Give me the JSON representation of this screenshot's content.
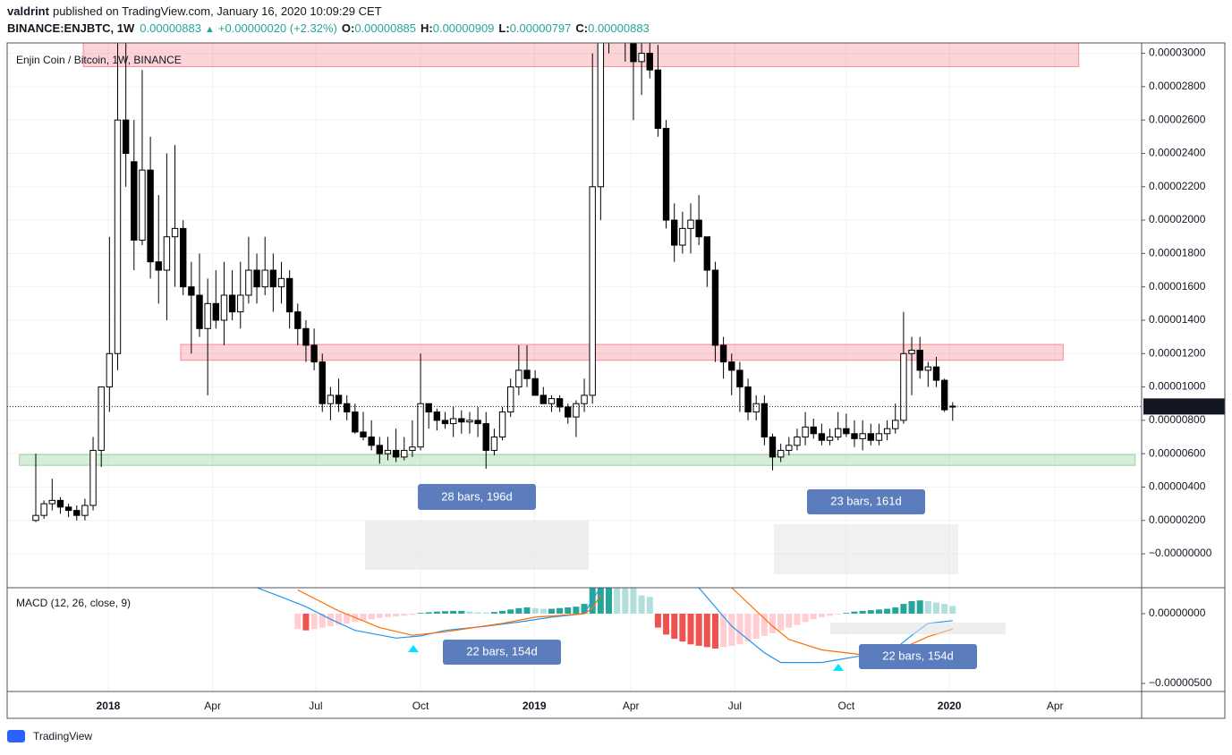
{
  "header": {
    "author": "valdrint",
    "published": "published on TradingView.com, January 16, 2020 10:09:29 CET",
    "symbol": "BINANCE:ENJBTC, 1W",
    "price": "0.00000883",
    "arrow": "▲",
    "change": "+0.00000020 (+2.32%)",
    "ohlc": [
      {
        "label": "O:",
        "value": "0.00000885"
      },
      {
        "label": "H:",
        "value": "0.00000909"
      },
      {
        "label": "L:",
        "value": "0.00000797"
      },
      {
        "label": "C:",
        "value": "0.00000883"
      }
    ]
  },
  "footer": {
    "logo": "TradingView"
  },
  "annotations": [
    "28 bars, 196d",
    "23 bars, 161d",
    "22 bars, 154d",
    "22 bars, 154d"
  ],
  "chart_data": {
    "type": "candlestick",
    "title": "Enjin Coin / Bitcoin, 1W, BINANCE",
    "up_color": "#ffffff",
    "down_color": "#000000",
    "wick_color": "#000000",
    "open": [
      2e-06,
      2.3e-06,
      3e-06,
      3.2e-06,
      2.8e-06,
      2.6e-06,
      2.3e-06,
      2.9e-06,
      6.2e-06,
      1e-05,
      1.2e-05,
      2.6e-05,
      2.35e-05,
      1.88e-05,
      2.3e-05,
      1.75e-05,
      1.7e-05,
      1.9e-05,
      1.95e-05,
      1.6e-05,
      1.55e-05,
      1.35e-05,
      1.5e-05,
      1.4e-05,
      1.55e-05,
      1.45e-05,
      1.55e-05,
      1.7e-05,
      1.6e-05,
      1.7e-05,
      1.6e-05,
      1.65e-05,
      1.45e-05,
      1.35e-05,
      1.25e-05,
      1.15e-05,
      9e-06,
      9.5e-06,
      9e-06,
      8.5e-06,
      7.3e-06,
      7e-06,
      6.5e-06,
      6e-06,
      6.2e-06,
      5.8e-06,
      6.2e-06,
      6.4e-06,
      9e-06,
      8.5e-06,
      8e-06,
      7.8e-06,
      8.1e-06,
      7.9e-06,
      8e-06,
      7.8e-06,
      6.2e-06,
      7e-06,
      8.5e-06,
      1e-05,
      1.1e-05,
      1.05e-05,
      9.5e-06,
      9e-06,
      9.3e-06,
      8.8e-06,
      8.2e-06,
      9e-06,
      9.5e-06,
      2.2e-05,
      3.2e-05,
      3.4e-05,
      3.2e-05,
      3.1e-05,
      2.95e-05,
      3e-05,
      2.9e-05,
      2.55e-05,
      2e-05,
      1.85e-05,
      1.95e-05,
      2e-05,
      1.9e-05,
      1.7e-05,
      1.25e-05,
      1.15e-05,
      1.1e-05,
      1e-05,
      8.5e-06,
      9e-06,
      7e-06,
      5.8e-06,
      6.2e-06,
      6.5e-06,
      7e-06,
      7.6e-06,
      7.2e-06,
      6.8e-06,
      7e-06,
      7.5e-06,
      7.2e-06,
      6.9e-06,
      7.2e-06,
      6.8e-06,
      7.2e-06,
      7.5e-06,
      8e-06,
      1.2e-05,
      1.22e-05,
      1.1e-05,
      1.12e-05,
      1.04e-05,
      8.85e-06
    ],
    "high": [
      6e-06,
      3.2e-06,
      4.5e-06,
      3.4e-06,
      3e-06,
      2.9e-06,
      3.3e-06,
      7e-06,
      1e-05,
      1.9e-05,
      3.2e-05,
      3.2e-05,
      2.6e-05,
      2.9e-05,
      2.5e-05,
      2.15e-05,
      2.4e-05,
      2.45e-05,
      2e-05,
      1.75e-05,
      1.8e-05,
      1.65e-05,
      1.7e-05,
      1.75e-05,
      1.7e-05,
      1.75e-05,
      1.9e-05,
      1.8e-05,
      1.9e-05,
      1.8e-05,
      1.75e-05,
      1.7e-05,
      1.5e-05,
      1.4e-05,
      1.35e-05,
      1.2e-05,
      1e-05,
      1.05e-05,
      9.5e-06,
      9e-06,
      8.5e-06,
      8e-06,
      7e-06,
      7e-06,
      7.5e-06,
      7e-06,
      8e-06,
      1.2e-05,
      9e-06,
      8.7e-06,
      8.5e-06,
      8.8e-06,
      8.6e-06,
      8.5e-06,
      8.8e-06,
      8.5e-06,
      7.5e-06,
      8.8e-06,
      1.05e-05,
      1.25e-05,
      1.25e-05,
      1.1e-05,
      1e-05,
      9.5e-06,
      9.5e-06,
      9e-06,
      9.2e-06,
      1.05e-05,
      3e-05,
      3.3e-05,
      3.6e-05,
      3.5e-05,
      3.3e-05,
      3.2e-05,
      3.1e-05,
      3.2e-05,
      3.05e-05,
      2.6e-05,
      2.1e-05,
      2.05e-05,
      2.1e-05,
      2.15e-05,
      1.9e-05,
      1.75e-05,
      1.3e-05,
      1.2e-05,
      1.15e-05,
      1.05e-05,
      9.5e-06,
      9.5e-06,
      7.2e-06,
      6.6e-06,
      7e-06,
      7.5e-06,
      8.5e-06,
      8.1e-06,
      7.8e-06,
      7.5e-06,
      8.5e-06,
      8.4e-06,
      8e-06,
      8e-06,
      7.8e-06,
      7.8e-06,
      8e-06,
      9e-06,
      1.45e-05,
      1.3e-05,
      1.3e-05,
      1.15e-05,
      1.18e-05,
      1.05e-05,
      9.09e-06
    ],
    "low": [
      1.9e-06,
      2.1e-06,
      2.6e-06,
      2.4e-06,
      2.2e-06,
      2e-06,
      2e-06,
      2.6e-06,
      5.2e-06,
      8.5e-06,
      1.1e-05,
      2.2e-05,
      1.7e-05,
      1.85e-05,
      1.65e-05,
      1.5e-05,
      1.4e-05,
      1.6e-05,
      1.55e-05,
      1.2e-05,
      1.3e-05,
      9.5e-06,
      1.35e-05,
      1.25e-05,
      1.4e-05,
      1.35e-05,
      1.5e-05,
      1.5e-05,
      1.55e-05,
      1.45e-05,
      1.5e-05,
      1.35e-05,
      1.25e-05,
      1.15e-05,
      1.1e-05,
      8.5e-06,
      8e-06,
      8.5e-06,
      8e-06,
      7.2e-06,
      6.8e-06,
      6.2e-06,
      5.4e-06,
      5.6e-06,
      5.5e-06,
      5.6e-06,
      5.8e-06,
      6.2e-06,
      7.5e-06,
      7.4e-06,
      7.5e-06,
      7e-06,
      7.2e-06,
      7.2e-06,
      7e-06,
      5.1e-06,
      5.9e-06,
      6.8e-06,
      8.2e-06,
      9.5e-06,
      1e-05,
      9.5e-06,
      9e-06,
      8.5e-06,
      8.5e-06,
      7.8e-06,
      7e-06,
      8.5e-06,
      9e-06,
      2e-05,
      3e-05,
      3.1e-05,
      2.95e-05,
      2.6e-05,
      2.75e-05,
      2.85e-05,
      2.5e-05,
      1.95e-05,
      1.75e-05,
      1.8e-05,
      1.8e-05,
      1.85e-05,
      1.6e-05,
      1.15e-05,
      1.05e-05,
      9.5e-06,
      8.5e-06,
      8e-06,
      8e-06,
      6.5e-06,
      5e-06,
      5.5e-06,
      5.9e-06,
      6.2e-06,
      6.5e-06,
      6.9e-06,
      6.5e-06,
      6.5e-06,
      6.8e-06,
      7e-06,
      6.4e-06,
      6.2e-06,
      6.5e-06,
      6.5e-06,
      6.8e-06,
      7.2e-06,
      7.8e-06,
      9.5e-06,
      1.05e-05,
      1e-05,
      1e-05,
      8.5e-06,
      7.97e-06
    ],
    "close": [
      2.3e-06,
      3e-06,
      3.2e-06,
      2.8e-06,
      2.6e-06,
      2.3e-06,
      2.9e-06,
      6.2e-06,
      1e-05,
      1.2e-05,
      2.6e-05,
      2.4e-05,
      1.88e-05,
      2.3e-05,
      1.75e-05,
      1.7e-05,
      1.9e-05,
      1.95e-05,
      1.6e-05,
      1.55e-05,
      1.35e-05,
      1.5e-05,
      1.4e-05,
      1.55e-05,
      1.45e-05,
      1.55e-05,
      1.7e-05,
      1.6e-05,
      1.7e-05,
      1.6e-05,
      1.65e-05,
      1.45e-05,
      1.35e-05,
      1.25e-05,
      1.15e-05,
      9e-06,
      9.5e-06,
      9e-06,
      8.5e-06,
      7.3e-06,
      7e-06,
      6.5e-06,
      6e-06,
      6.2e-06,
      5.8e-06,
      6.2e-06,
      6.4e-06,
      9e-06,
      8.5e-06,
      8e-06,
      7.8e-06,
      8.1e-06,
      7.9e-06,
      8e-06,
      7.8e-06,
      6.2e-06,
      7e-06,
      8.5e-06,
      1e-05,
      1.1e-05,
      1.05e-05,
      9.5e-06,
      9e-06,
      9.3e-06,
      8.8e-06,
      8.2e-06,
      9e-06,
      9.5e-06,
      2.2e-05,
      3.2e-05,
      3.4e-05,
      3.2e-05,
      3.1e-05,
      2.95e-05,
      3e-05,
      2.9e-05,
      2.55e-05,
      2e-05,
      1.85e-05,
      1.95e-05,
      2e-05,
      1.9e-05,
      1.7e-05,
      1.25e-05,
      1.15e-05,
      1.1e-05,
      1e-05,
      8.5e-06,
      9e-06,
      7e-06,
      5.8e-06,
      6.2e-06,
      6.5e-06,
      7e-06,
      7.6e-06,
      7.2e-06,
      6.8e-06,
      7e-06,
      7.5e-06,
      7.2e-06,
      6.9e-06,
      7.2e-06,
      6.8e-06,
      7.2e-06,
      7.5e-06,
      8e-06,
      1.2e-05,
      1.22e-05,
      1.1e-05,
      1.12e-05,
      1.04e-05,
      8.63e-06,
      8.83e-06
    ],
    "ylim": [
      -1.98e-06,
      3.062e-05
    ],
    "yticks": [
      {
        "value": 3e-05,
        "label": "0.00003000"
      },
      {
        "value": 2.8e-05,
        "label": "0.00002800"
      },
      {
        "value": 2.6e-05,
        "label": "0.00002600"
      },
      {
        "value": 2.4e-05,
        "label": "0.00002400"
      },
      {
        "value": 2.2e-05,
        "label": "0.00002200"
      },
      {
        "value": 2e-05,
        "label": "0.00002000"
      },
      {
        "value": 1.8e-05,
        "label": "0.00001800"
      },
      {
        "value": 1.6e-05,
        "label": "0.00001600"
      },
      {
        "value": 1.4e-05,
        "label": "0.00001400"
      },
      {
        "value": 1.2e-05,
        "label": "0.00001200"
      },
      {
        "value": 1e-05,
        "label": "0.00001000"
      },
      {
        "value": 8e-06,
        "label": "0.00000800"
      },
      {
        "value": 6e-06,
        "label": "0.00000600"
      },
      {
        "value": 4e-06,
        "label": "0.00000400"
      },
      {
        "value": 2e-06,
        "label": "0.00000200"
      },
      {
        "value": 0,
        "label": "−0.00000000"
      }
    ],
    "xticks": [
      {
        "value": 8.85,
        "label": "2018"
      },
      {
        "value": 21.6,
        "label": "Apr"
      },
      {
        "value": 34.2,
        "label": "Jul"
      },
      {
        "value": 47,
        "label": "Oct"
      },
      {
        "value": 60.9,
        "label": "2019"
      },
      {
        "value": 72.7,
        "label": "Apr"
      },
      {
        "value": 85.4,
        "label": "Jul"
      },
      {
        "value": 99,
        "label": "Oct"
      },
      {
        "value": 111.6,
        "label": "2020"
      },
      {
        "value": 124.5,
        "label": "Apr"
      }
    ],
    "grid": true,
    "last_price": {
      "value": 8.83e-06,
      "label": "0.00000883"
    },
    "zones": [
      {
        "low": 2.92e-05,
        "high": 3.15e-05,
        "start": 5.8,
        "end": 127.4,
        "color": "#f23645"
      },
      {
        "low": 1.16e-05,
        "high": 1.255e-05,
        "start": 17.7,
        "end": 125.5,
        "color": "#f23645"
      },
      {
        "low": 5.3e-06,
        "high": 5.95e-06,
        "start": -2,
        "end": 134.3,
        "color": "#4caf50"
      }
    ],
    "macd": {
      "title": "MACD (12, 26, close, 9)",
      "ylim": [
        -5.58e-06,
        1.86e-06
      ],
      "yticks": [
        {
          "value": 0,
          "label": "0.00000000"
        },
        {
          "value": -5e-06,
          "label": "−0.00000500"
        }
      ],
      "histogram": [
        null,
        null,
        null,
        null,
        null,
        null,
        null,
        null,
        null,
        null,
        null,
        null,
        null,
        null,
        null,
        null,
        null,
        null,
        null,
        null,
        null,
        null,
        null,
        null,
        null,
        null,
        null,
        null,
        null,
        null,
        null,
        null,
        -1.1e-06,
        -1.2e-06,
        -1.1e-06,
        -1e-06,
        -9e-07,
        -8e-07,
        -7e-07,
        -6e-07,
        -5e-07,
        -4e-07,
        -3e-07,
        -2.5e-07,
        -2e-07,
        -1.5e-07,
        -8e-08,
        5e-08,
        1e-07,
        1.5e-07,
        1.8e-07,
        2e-07,
        2e-07,
        1.5e-07,
        1e-07,
        8e-08,
        1.2e-07,
        2e-07,
        3e-07,
        4e-07,
        4.5e-07,
        4e-07,
        3.5e-07,
        3.5e-07,
        4e-07,
        4.5e-07,
        5e-07,
        7e-07,
        2e-06,
        2.5e-06,
        3e-06,
        2.8e-06,
        2.5e-06,
        2e-06,
        1.3e-06,
        1.2e-06,
        -1e-06,
        -1.5e-06,
        -1.8e-06,
        -2e-06,
        -2.2e-06,
        -2.3e-06,
        -2.4e-06,
        -2.5e-06,
        -2.4e-06,
        -2.3e-06,
        -2.2e-06,
        -2e-06,
        -1.8e-06,
        -1.6e-06,
        -1.4e-06,
        -1.2e-06,
        -1e-06,
        -8e-07,
        -6e-07,
        -4e-07,
        -2.5e-07,
        -1.5e-07,
        -5e-08,
        5e-08,
        1.5e-07,
        2e-07,
        2.5e-07,
        3e-07,
        3.5e-07,
        4.5e-07,
        7e-07,
        9e-07,
        9.5e-07,
        9e-07,
        8e-07,
        7e-07,
        5.5e-07
      ],
      "series": [
        {
          "color": "#2196f3",
          "x": [
            27,
            30,
            33,
            36,
            39,
            44,
            47,
            50,
            55,
            59,
            63,
            67,
            68,
            69,
            75,
            81,
            85,
            89,
            91,
            96,
            101,
            105,
            107,
            109,
            112
          ],
          "values": [
            1.86e-06,
            1.2e-06,
            5e-07,
            -4e-07,
            -1.2e-06,
            -1.75e-06,
            -1.6e-06,
            -1.2e-06,
            -9e-07,
            -6e-07,
            -2.5e-07,
            0,
            1e-06,
            1.9e-06,
            null,
            1.86e-06,
            -9e-07,
            -2.8e-06,
            -3.5e-06,
            -3.5e-06,
            -3e-06,
            -2.5e-06,
            -1.55e-06,
            -7e-07,
            -5e-07
          ]
        },
        {
          "color": "#ff6d00",
          "x": [
            32,
            37,
            42,
            46,
            50,
            57,
            61,
            67,
            68,
            69,
            75,
            85,
            90,
            92,
            96,
            101,
            105,
            109,
            112
          ],
          "values": [
            1.7e-06,
            2e-07,
            -1e-06,
            -1.55e-06,
            -1.3e-06,
            -7e-07,
            -2.5e-07,
            0,
            4e-07,
            1.35e-06,
            null,
            1.86e-06,
            -9e-07,
            -1.85e-06,
            -2.6e-06,
            -2.95e-06,
            -2.7e-06,
            -1.65e-06,
            -1.1e-06
          ]
        }
      ]
    }
  }
}
